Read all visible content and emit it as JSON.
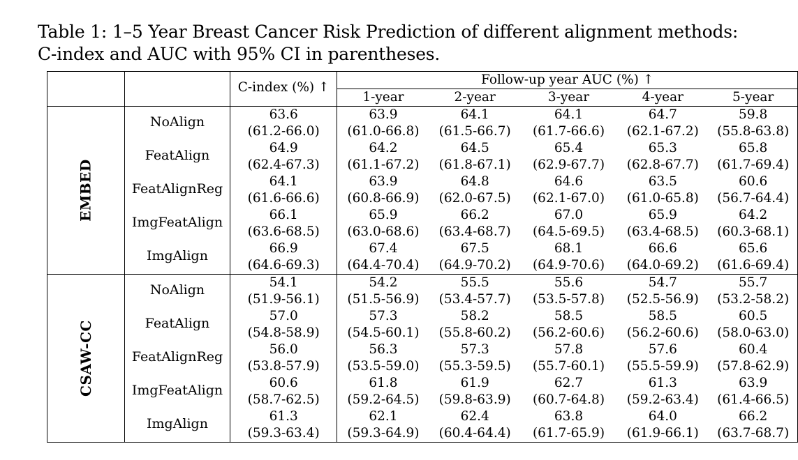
{
  "caption": {
    "line1": "Table 1: 1–5 Year Breast Cancer Risk Prediction of different alignment methods:",
    "line2": "C-index and AUC with 95% CI in parentheses."
  },
  "header": {
    "cindex": "C-index (%) ↑",
    "followup": "Follow-up year AUC (%) ↑",
    "years": [
      "1-year",
      "2-year",
      "3-year",
      "4-year",
      "5-year"
    ]
  },
  "groups": [
    {
      "dataset": "EMBED",
      "rows": [
        {
          "method": "NoAlign",
          "cells": [
            {
              "value": "63.6",
              "ci": "(61.2-66.0)",
              "bold": false
            },
            {
              "value": "63.9",
              "ci": "(61.0-66.8)",
              "bold": false
            },
            {
              "value": "64.1",
              "ci": "(61.5-66.7)",
              "bold": false
            },
            {
              "value": "64.1",
              "ci": "(61.7-66.6)",
              "bold": false
            },
            {
              "value": "64.7",
              "ci": "(62.1-67.2)",
              "bold": false
            },
            {
              "value": "59.8",
              "ci": "(55.8-63.8)",
              "bold": false
            }
          ]
        },
        {
          "method": "FeatAlign",
          "cells": [
            {
              "value": "64.9",
              "ci": "(62.4-67.3)",
              "bold": false
            },
            {
              "value": "64.2",
              "ci": "(61.1-67.2)",
              "bold": false
            },
            {
              "value": "64.5",
              "ci": "(61.8-67.1)",
              "bold": false
            },
            {
              "value": "65.4",
              "ci": "(62.9-67.7)",
              "bold": false
            },
            {
              "value": "65.3",
              "ci": "(62.8-67.7)",
              "bold": false
            },
            {
              "value": "65.8",
              "ci": "(61.7-69.4)",
              "bold": true
            }
          ]
        },
        {
          "method": "FeatAlignReg",
          "cells": [
            {
              "value": "64.1",
              "ci": "(61.6-66.6)",
              "bold": false
            },
            {
              "value": "63.9",
              "ci": "(60.8-66.9)",
              "bold": false
            },
            {
              "value": "64.8",
              "ci": "(62.0-67.5)",
              "bold": false
            },
            {
              "value": "64.6",
              "ci": "(62.1-67.0)",
              "bold": false
            },
            {
              "value": "63.5",
              "ci": "(61.0-65.8)",
              "bold": false
            },
            {
              "value": "60.6",
              "ci": "(56.7-64.4)",
              "bold": false
            }
          ]
        },
        {
          "method": "ImgFeatAlign",
          "cells": [
            {
              "value": "66.1",
              "ci": "(63.6-68.5)",
              "bold": false
            },
            {
              "value": "65.9",
              "ci": "(63.0-68.6)",
              "bold": false
            },
            {
              "value": "66.2",
              "ci": "(63.4-68.7)",
              "bold": false
            },
            {
              "value": "67.0",
              "ci": "(64.5-69.5)",
              "bold": false
            },
            {
              "value": "65.9",
              "ci": "(63.4-68.5)",
              "bold": false
            },
            {
              "value": "64.2",
              "ci": "(60.3-68.1)",
              "bold": false
            }
          ]
        },
        {
          "method": "ImgAlign",
          "cells": [
            {
              "value": "66.9",
              "ci": "(64.6-69.3)",
              "bold": true
            },
            {
              "value": "67.4",
              "ci": "(64.4-70.4)",
              "bold": true
            },
            {
              "value": "67.5",
              "ci": "(64.9-70.2)",
              "bold": true
            },
            {
              "value": "68.1",
              "ci": "(64.9-70.6)",
              "bold": true
            },
            {
              "value": "66.6",
              "ci": "(64.0-69.2)",
              "bold": true
            },
            {
              "value": "65.6",
              "ci": "(61.6-69.4)",
              "bold": false
            }
          ]
        }
      ]
    },
    {
      "dataset": "CSAW-CC",
      "rows": [
        {
          "method": "NoAlign",
          "cells": [
            {
              "value": "54.1",
              "ci": "(51.9-56.1)",
              "bold": false
            },
            {
              "value": "54.2",
              "ci": "(51.5-56.9)",
              "bold": false
            },
            {
              "value": "55.5",
              "ci": "(53.4-57.7)",
              "bold": false
            },
            {
              "value": "55.6",
              "ci": "(53.5-57.8)",
              "bold": false
            },
            {
              "value": "54.7",
              "ci": "(52.5-56.9)",
              "bold": false
            },
            {
              "value": "55.7",
              "ci": "(53.2-58.2)",
              "bold": false
            }
          ]
        },
        {
          "method": "FeatAlign",
          "cells": [
            {
              "value": "57.0",
              "ci": "(54.8-58.9)",
              "bold": false
            },
            {
              "value": "57.3",
              "ci": "(54.5-60.1)",
              "bold": false
            },
            {
              "value": "58.2",
              "ci": "(55.8-60.2)",
              "bold": false
            },
            {
              "value": "58.5",
              "ci": "(56.2-60.6)",
              "bold": false
            },
            {
              "value": "58.5",
              "ci": "(56.2-60.6)",
              "bold": false
            },
            {
              "value": "60.5",
              "ci": "(58.0-63.0)",
              "bold": false
            }
          ]
        },
        {
          "method": "FeatAlignReg",
          "cells": [
            {
              "value": "56.0",
              "ci": "(53.8-57.9)",
              "bold": false
            },
            {
              "value": "56.3",
              "ci": "(53.5-59.0)",
              "bold": false
            },
            {
              "value": "57.3",
              "ci": "(55.3-59.5)",
              "bold": false
            },
            {
              "value": "57.8",
              "ci": "(55.7-60.1)",
              "bold": false
            },
            {
              "value": "57.6",
              "ci": "(55.5-59.9)",
              "bold": false
            },
            {
              "value": "60.4",
              "ci": "(57.8-62.9)",
              "bold": false
            }
          ]
        },
        {
          "method": "ImgFeatAlign",
          "cells": [
            {
              "value": "60.6",
              "ci": "(58.7-62.5)",
              "bold": false
            },
            {
              "value": "61.8",
              "ci": "(59.2-64.5)",
              "bold": false
            },
            {
              "value": "61.9",
              "ci": "(59.8-63.9)",
              "bold": false
            },
            {
              "value": "62.7",
              "ci": "(60.7-64.8)",
              "bold": false
            },
            {
              "value": "61.3",
              "ci": "(59.2-63.4)",
              "bold": false
            },
            {
              "value": "63.9",
              "ci": "(61.4-66.5)",
              "bold": false
            }
          ]
        },
        {
          "method": "ImgAlign",
          "cells": [
            {
              "value": "61.3",
              "ci": "(59.3-63.4)",
              "bold": true
            },
            {
              "value": "62.1",
              "ci": "(59.3-64.9)",
              "bold": true
            },
            {
              "value": "62.4",
              "ci": "(60.4-64.4)",
              "bold": true
            },
            {
              "value": "63.8",
              "ci": "(61.7-65.9)",
              "bold": true
            },
            {
              "value": "64.0",
              "ci": "(61.9-66.1)",
              "bold": true
            },
            {
              "value": "66.2",
              "ci": "(63.7-68.7)",
              "bold": true
            }
          ]
        }
      ]
    }
  ]
}
